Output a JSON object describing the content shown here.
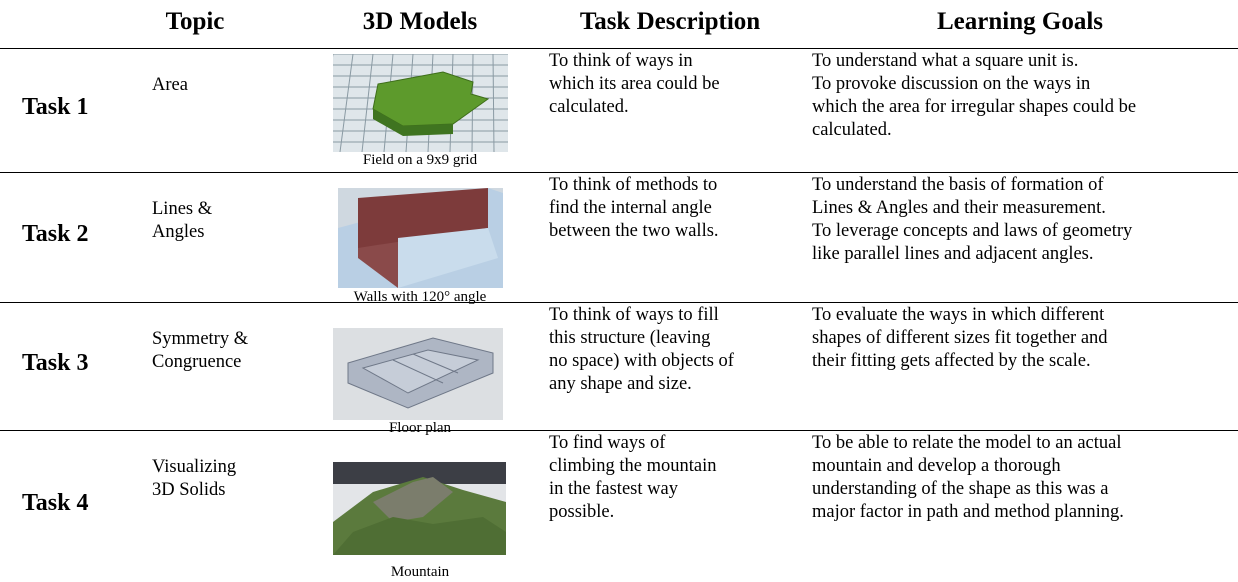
{
  "header": {
    "topic": "Topic",
    "models": "3D Models",
    "description": "Task Description",
    "goals": "Learning Goals"
  },
  "rows": [
    {
      "task": "Task 1",
      "topic": [
        "Area"
      ],
      "caption": "Field on a 9x9 grid",
      "description": [
        "To think of ways in",
        "which its area could be",
        "calculated."
      ],
      "goals": [
        "To understand what a square unit is.",
        "To provoke discussion on the ways in",
        "which the area for irregular shapes could be",
        "calculated."
      ]
    },
    {
      "task": "Task 2",
      "topic": [
        "Lines &",
        "Angles"
      ],
      "caption": "Walls with 120° angle",
      "description": [
        "To think of methods to",
        "find the internal angle",
        "between the two walls."
      ],
      "goals": [
        "To understand the basis of formation of",
        "Lines & Angles and their measurement.",
        "To leverage concepts and laws of geometry",
        "like parallel lines and adjacent angles."
      ]
    },
    {
      "task": "Task 3",
      "topic": [
        "Symmetry &",
        "Congruence"
      ],
      "caption": "Floor plan",
      "description": [
        "To think of ways to fill",
        "this structure (leaving",
        "no space) with objects of",
        "any shape and size."
      ],
      "goals": [
        "To evaluate the ways in which different",
        "shapes of different sizes fit together and",
        "their fitting gets affected by the scale."
      ]
    },
    {
      "task": "Task 4",
      "topic": [
        "Visualizing",
        "3D Solids"
      ],
      "caption": "Mountain",
      "description": [
        "To find ways of",
        "climbing the mountain",
        "in the fastest way",
        "possible."
      ],
      "goals": [
        "To be able to relate the model to an actual",
        "mountain and develop a thorough",
        "understanding of the shape as this was a",
        "major factor in path and method planning."
      ]
    }
  ]
}
